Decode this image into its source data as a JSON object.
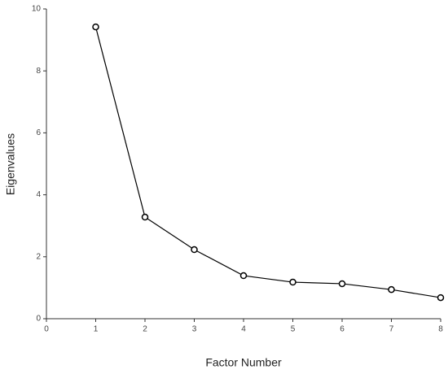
{
  "chart_data": {
    "type": "line",
    "x_label": "Factor Number",
    "y_label": "Eigenvalues",
    "x": [
      1,
      2,
      3,
      4,
      5,
      6,
      7,
      8
    ],
    "values": [
      9.42,
      3.28,
      2.23,
      1.39,
      1.18,
      1.13,
      0.94,
      0.68
    ],
    "color": "#000000",
    "xlim": [
      0,
      8
    ],
    "xticks": [
      0,
      1,
      2,
      3,
      4,
      5,
      6,
      7,
      8
    ],
    "ylim": [
      0,
      10
    ],
    "yticks": [
      0,
      2,
      4,
      6,
      8,
      10
    ],
    "grid": false
  }
}
